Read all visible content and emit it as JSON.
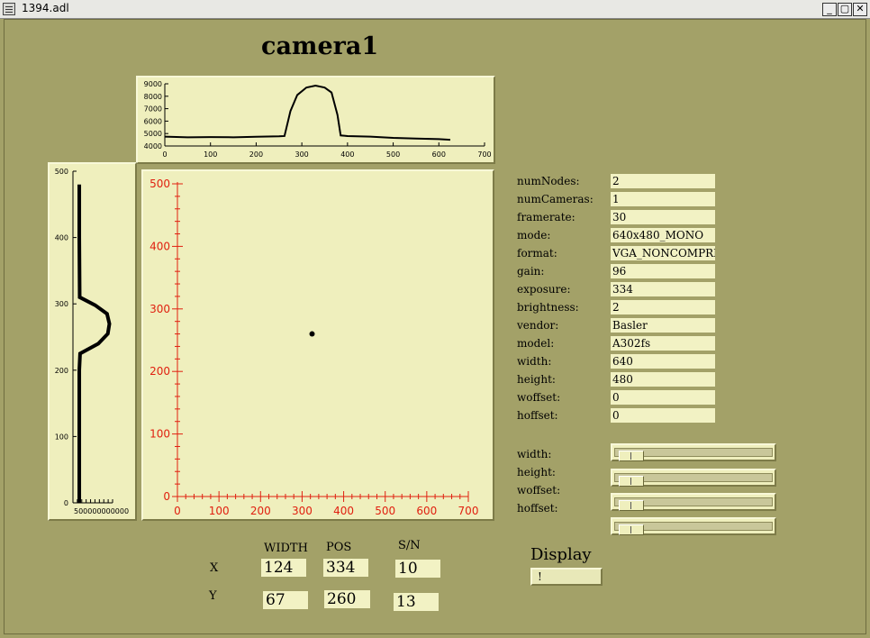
{
  "window": {
    "title": "1394.adl"
  },
  "heading": "camera1",
  "top_profile": {
    "chart_data": {
      "type": "line",
      "x_ticks": [
        "0",
        "100",
        "200",
        "300",
        "400",
        "500",
        "600",
        "700"
      ],
      "y_ticks": [
        "4000",
        "5000",
        "6000",
        "7000",
        "8000",
        "9000"
      ],
      "xlim": [
        0,
        700
      ],
      "ylim": [
        4000,
        9000
      ],
      "x": [
        0,
        50,
        100,
        150,
        200,
        250,
        262,
        275,
        290,
        310,
        330,
        350,
        365,
        378,
        385,
        400,
        450,
        500,
        550,
        600,
        625
      ],
      "y": [
        4750,
        4700,
        4720,
        4700,
        4740,
        4780,
        4800,
        6800,
        8100,
        8700,
        8850,
        8700,
        8300,
        6500,
        4850,
        4800,
        4750,
        4650,
        4600,
        4550,
        4500
      ]
    }
  },
  "side_profile": {
    "chart_data": {
      "type": "line",
      "y_ticks": [
        "0",
        "100",
        "200",
        "300",
        "400",
        "500"
      ],
      "x_tick_text": "500000000000",
      "ylim": [
        0,
        500
      ],
      "y": [
        0,
        100,
        200,
        225,
        240,
        255,
        270,
        285,
        298,
        310,
        400,
        480
      ],
      "x": [
        4800,
        4800,
        4800,
        4900,
        7200,
        8400,
        8600,
        8300,
        6800,
        4850,
        4800,
        4800
      ]
    }
  },
  "main_plot": {
    "chart_data": {
      "type": "scatter",
      "x_ticks": [
        "0",
        "100",
        "200",
        "300",
        "400",
        "500",
        "600",
        "700"
      ],
      "y_ticks": [
        "0",
        "100",
        "200",
        "300",
        "400",
        "500"
      ],
      "xlim": [
        0,
        700
      ],
      "ylim": [
        0,
        500
      ],
      "points": [
        {
          "x": 324,
          "y": 260
        }
      ],
      "axis_color": "#e02010"
    }
  },
  "params": [
    {
      "label": "numNodes:",
      "value": "2"
    },
    {
      "label": "numCameras:",
      "value": "1"
    },
    {
      "label": "framerate:",
      "value": "30"
    },
    {
      "label": "mode:",
      "value": "640x480_MONO"
    },
    {
      "label": "format:",
      "value": "VGA_NONCOMPRES"
    },
    {
      "label": "gain:",
      "value": "96"
    },
    {
      "label": "exposure:",
      "value": "334"
    },
    {
      "label": "brightness:",
      "value": "2"
    },
    {
      "label": "vendor:",
      "value": "Basler"
    },
    {
      "label": "model:",
      "value": "A302fs"
    },
    {
      "label": "width:",
      "value": "640"
    },
    {
      "label": "height:",
      "value": "480"
    },
    {
      "label": "woffset:",
      "value": "0"
    },
    {
      "label": "hoffset:",
      "value": "0"
    }
  ],
  "sliders": [
    "width:",
    "height:",
    "woffset:",
    "hoffset:"
  ],
  "stats": {
    "headers": {
      "width": "WIDTH",
      "pos": "POS",
      "sn": "S/N"
    },
    "x": {
      "label": "X",
      "width": "124",
      "pos": "334",
      "sn": "10"
    },
    "y": {
      "label": "Y",
      "width": "67",
      "pos": "260",
      "sn": "13"
    }
  },
  "display": {
    "label": "Display",
    "button": "!"
  }
}
